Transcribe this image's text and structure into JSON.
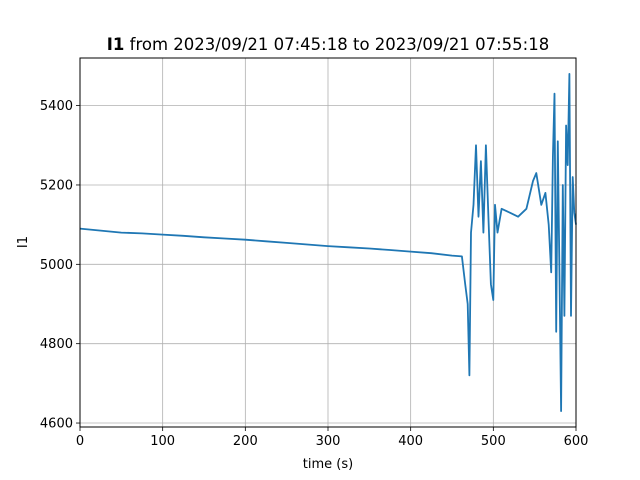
{
  "chart_data": {
    "type": "line",
    "title_bold": "I1",
    "title_rest": " from 2023/09/21 07:45:18 to 2023/09/21 07:55:18",
    "xlabel": "time (s)",
    "ylabel": "I1",
    "xlim": [
      0,
      600
    ],
    "ylim": [
      4590,
      5520
    ],
    "x_ticks": [
      0,
      100,
      200,
      300,
      400,
      500,
      600
    ],
    "y_ticks": [
      4600,
      4800,
      5000,
      5200,
      5400
    ],
    "grid": true,
    "line_color": "#1f77b4",
    "series": [
      {
        "x": [
          0,
          25,
          50,
          75,
          100,
          125,
          150,
          175,
          200,
          225,
          250,
          275,
          300,
          325,
          350,
          375,
          400,
          425,
          450,
          462,
          466,
          469,
          471,
          473,
          476,
          479,
          482,
          485,
          488,
          491,
          494,
          497,
          500,
          502,
          505,
          510,
          520,
          530,
          540,
          548,
          552,
          558,
          563,
          567,
          570,
          572,
          574,
          576,
          578,
          580,
          582,
          584,
          586,
          588,
          590,
          592,
          594,
          596,
          598,
          600
        ],
        "y": [
          5090,
          5085,
          5080,
          5078,
          5075,
          5072,
          5068,
          5065,
          5062,
          5058,
          5054,
          5050,
          5046,
          5043,
          5040,
          5036,
          5032,
          5028,
          5022,
          5020,
          4950,
          4900,
          4720,
          5080,
          5150,
          5300,
          5120,
          5260,
          5080,
          5300,
          5120,
          4950,
          4910,
          5150,
          5080,
          5140,
          5130,
          5120,
          5140,
          5210,
          5230,
          5150,
          5180,
          5100,
          4980,
          5270,
          5430,
          4830,
          5310,
          4970,
          4630,
          5200,
          4870,
          5350,
          5250,
          5480,
          4870,
          5220,
          5130,
          5100
        ]
      }
    ]
  }
}
